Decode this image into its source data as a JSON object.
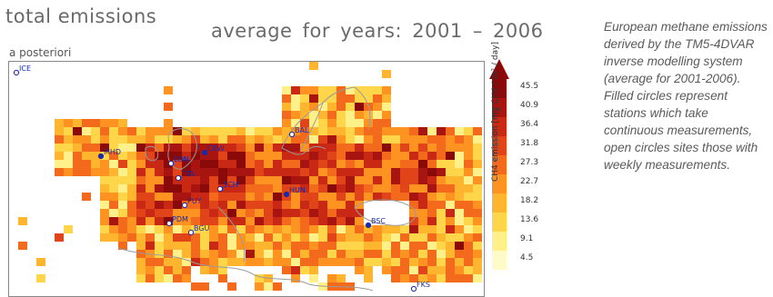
{
  "figure": {
    "title_left": "total emissions",
    "title_right": "average for years: 2001 – 2006",
    "subtitle": "a posteriori"
  },
  "colorbar": {
    "ticks": [
      "45.5",
      "40.9",
      "36.4",
      "31.8",
      "27.3",
      "22.7",
      "18.2",
      "13.6",
      "9.1",
      "4.5"
    ],
    "unit_label": "CH4 emission [mg CH4 / m² / day]",
    "colors": [
      "#fffbc8",
      "#fff08a",
      "#ffd54a",
      "#ffb52e",
      "#ff9322",
      "#f46a1c",
      "#e04418",
      "#c82814",
      "#a81410",
      "#8a0a0a"
    ]
  },
  "stations": [
    {
      "code": "ICE",
      "filled": false
    },
    {
      "code": "MHD",
      "filled": true
    },
    {
      "code": "LON",
      "filled": false
    },
    {
      "code": "CBW",
      "filled": true
    },
    {
      "code": "TTA",
      "filled": false
    },
    {
      "code": "SCH",
      "filled": false
    },
    {
      "code": "PUY",
      "filled": false
    },
    {
      "code": "PDM",
      "filled": false
    },
    {
      "code": "BGU",
      "filled": false
    },
    {
      "code": "HUN",
      "filled": true
    },
    {
      "code": "BAL",
      "filled": false
    },
    {
      "code": "BSC",
      "filled": true
    },
    {
      "code": "FKS",
      "filled": false
    }
  ],
  "caption": "European methane emissions derived by the TM5-4DVAR inverse modelling system (average for 2001-2006). Filled circles represent stations which take continuous measurements, open circles sites those with weekly measurements."
}
